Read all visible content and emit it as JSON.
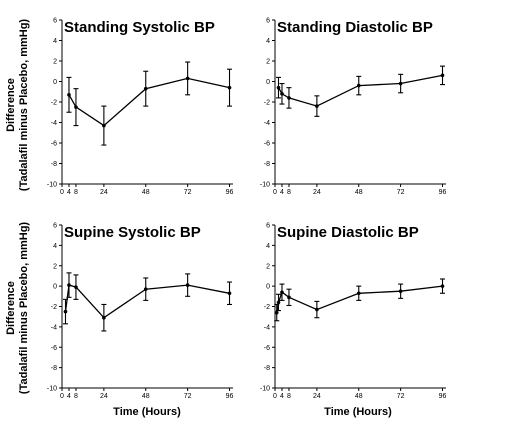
{
  "figure": {
    "ylabel_line1": "Difference",
    "ylabel_line2": "(Tadalafil minus Placebo, mmHg)",
    "xlabel": "Time (Hours)"
  },
  "chart_data": [
    {
      "type": "line",
      "title": "Standing Systolic BP",
      "xlabel": "",
      "ylabel": "Difference (Tadalafil minus Placebo, mmHg)",
      "ylim": [
        -10,
        6
      ],
      "yticks": [
        6,
        4,
        2,
        0,
        -2,
        -4,
        -6,
        -8,
        -10
      ],
      "xticks": [
        0,
        4,
        8,
        24,
        48,
        72,
        96
      ],
      "grid": false,
      "x": [
        4,
        8,
        24,
        48,
        72,
        96
      ],
      "y": [
        -1.3,
        -2.5,
        -4.3,
        -0.7,
        0.3,
        -0.6
      ],
      "err": [
        1.7,
        1.8,
        1.9,
        1.7,
        1.6,
        1.8
      ]
    },
    {
      "type": "line",
      "title": "Standing Diastolic BP",
      "xlabel": "",
      "ylabel": "",
      "ylim": [
        -10,
        6
      ],
      "yticks": [
        6,
        4,
        2,
        0,
        -2,
        -4,
        -6,
        -8,
        -10
      ],
      "xticks": [
        0,
        4,
        8,
        24,
        48,
        72,
        96
      ],
      "grid": false,
      "x": [
        2,
        4,
        8,
        24,
        48,
        72,
        96
      ],
      "y": [
        -0.6,
        -1.2,
        -1.6,
        -2.4,
        -0.4,
        -0.2,
        0.6
      ],
      "err": [
        1.0,
        1.0,
        1.0,
        1.0,
        0.9,
        0.9,
        0.9
      ]
    },
    {
      "type": "line",
      "title": "Supine Systolic BP",
      "xlabel": "Time (Hours)",
      "ylabel": "Difference (Tadalafil minus Placebo, mmHg)",
      "ylim": [
        -10,
        6
      ],
      "yticks": [
        6,
        4,
        2,
        0,
        -2,
        -4,
        -6,
        -8,
        -10
      ],
      "xticks": [
        0,
        4,
        8,
        24,
        48,
        72,
        96
      ],
      "grid": false,
      "x": [
        2,
        4,
        8,
        24,
        48,
        72,
        96
      ],
      "y": [
        -2.5,
        0.1,
        -0.1,
        -3.1,
        -0.3,
        0.1,
        -0.7
      ],
      "err": [
        1.2,
        1.2,
        1.2,
        1.3,
        1.1,
        1.1,
        1.1
      ]
    },
    {
      "type": "line",
      "title": "Supine Diastolic BP",
      "xlabel": "Time (Hours)",
      "ylabel": "",
      "ylim": [
        -10,
        6
      ],
      "yticks": [
        6,
        4,
        2,
        0,
        -2,
        -4,
        -6,
        -8,
        -10
      ],
      "xticks": [
        0,
        4,
        8,
        24,
        48,
        72,
        96
      ],
      "grid": false,
      "x": [
        1,
        2,
        4,
        8,
        24,
        48,
        72,
        96
      ],
      "y": [
        -2.6,
        -1.6,
        -0.6,
        -1.1,
        -2.3,
        -0.7,
        -0.5,
        0.0
      ],
      "err": [
        0.8,
        0.8,
        0.8,
        0.8,
        0.8,
        0.7,
        0.7,
        0.7
      ]
    }
  ]
}
